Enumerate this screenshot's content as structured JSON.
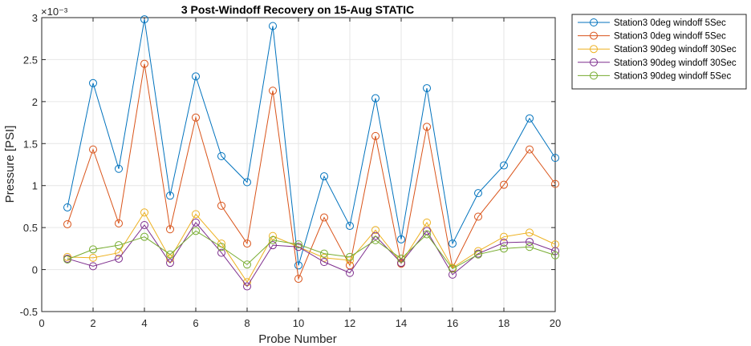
{
  "chart_data": {
    "type": "line",
    "title": "3 Post-Windoff Recovery on 15-Aug STATIC",
    "xlabel": "Probe Number",
    "ylabel": "Pressure [PSI]",
    "y_exponent_label": "×10⁻³",
    "xlim": [
      0,
      20
    ],
    "ylim": [
      -0.0005,
      0.003
    ],
    "x_ticks": [
      0,
      2,
      4,
      6,
      8,
      10,
      12,
      14,
      16,
      18,
      20
    ],
    "x_tick_labels": [
      "0",
      "2",
      "4",
      "6",
      "8",
      "10",
      "12",
      "14",
      "16",
      "18",
      "20"
    ],
    "y_ticks": [
      -0.0005,
      0,
      0.0005,
      0.001,
      0.0015,
      0.002,
      0.0025,
      0.003
    ],
    "y_tick_labels": [
      "-0.5",
      "0",
      "0.5",
      "1",
      "1.5",
      "2",
      "2.5",
      "3"
    ],
    "grid": true,
    "legend_position": "outside-top-right",
    "marker": "circle",
    "x": [
      1,
      2,
      3,
      4,
      5,
      6,
      7,
      8,
      9,
      10,
      11,
      12,
      13,
      14,
      15,
      16,
      17,
      18,
      19,
      20
    ],
    "series": [
      {
        "name": "Station3 0deg windoff 5Sec",
        "color": "#0072BD",
        "values": [
          0.00074,
          0.00222,
          0.0012,
          0.00298,
          0.00088,
          0.0023,
          0.00135,
          0.00104,
          0.0029,
          5e-05,
          0.00111,
          0.00052,
          0.00204,
          0.00036,
          0.00216,
          0.00031,
          0.00091,
          0.00124,
          0.0018,
          0.00133
        ]
      },
      {
        "name": "Station3 0deg windoff 5Sec",
        "color": "#D95319",
        "values": [
          0.00054,
          0.00143,
          0.00055,
          0.00245,
          0.00048,
          0.00181,
          0.00076,
          0.00031,
          0.00213,
          -0.00011,
          0.00062,
          5e-05,
          0.00159,
          7e-05,
          0.0017,
          2e-05,
          0.00063,
          0.00101,
          0.00143,
          0.00102
        ]
      },
      {
        "name": "Station3 90deg windoff 30Sec",
        "color": "#EDB120",
        "values": [
          0.00015,
          0.00014,
          0.0002,
          0.00068,
          0.00013,
          0.00066,
          0.00031,
          -0.00015,
          0.0004,
          0.00027,
          0.00014,
          0.00011,
          0.00047,
          8e-05,
          0.00056,
          2e-05,
          0.00022,
          0.00039,
          0.00044,
          0.0003
        ]
      },
      {
        "name": "Station3 90deg windoff 30Sec",
        "color": "#7E2F8E",
        "values": [
          0.00013,
          4e-05,
          0.00013,
          0.00053,
          8e-05,
          0.00056,
          0.0002,
          -0.0002,
          0.00029,
          0.00027,
          9e-05,
          -4e-05,
          0.0004,
          8e-05,
          0.00046,
          -6e-05,
          0.00019,
          0.00032,
          0.00033,
          0.00022
        ]
      },
      {
        "name": "Station3 90deg windoff 5Sec",
        "color": "#77AC30",
        "values": [
          0.00012,
          0.00024,
          0.00029,
          0.00039,
          0.00018,
          0.00046,
          0.00027,
          6e-05,
          0.00035,
          0.0003,
          0.00019,
          0.00015,
          0.00035,
          0.00013,
          0.00042,
          1e-05,
          0.00018,
          0.00025,
          0.00027,
          0.00017
        ]
      }
    ]
  }
}
